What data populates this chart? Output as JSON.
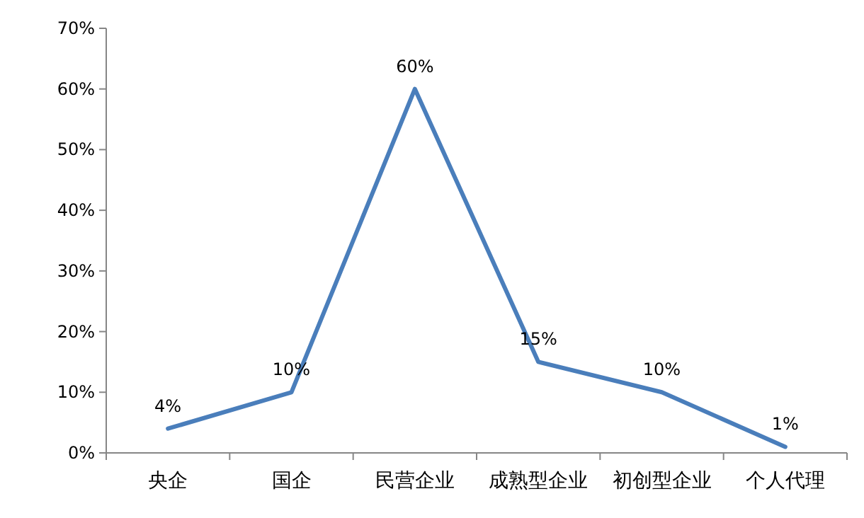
{
  "chart_data": {
    "type": "line",
    "categories": [
      "央企",
      "国企",
      "民营企业",
      "成熟型企业",
      "初创型企业",
      "个人代理"
    ],
    "series": [
      {
        "color": "#4a7ebb",
        "values": [
          4,
          10,
          60,
          15,
          10,
          1
        ],
        "value_labels": [
          "4%",
          "10%",
          "60%",
          "15%",
          "10%",
          "1%"
        ]
      }
    ],
    "ylim": [
      0,
      70
    ],
    "yticks": [
      {
        "value": 0,
        "label": "0%"
      },
      {
        "value": 10,
        "label": "10%"
      },
      {
        "value": 20,
        "label": "20%"
      },
      {
        "value": 30,
        "label": "30%"
      },
      {
        "value": 40,
        "label": "40%"
      },
      {
        "value": 50,
        "label": "50%"
      },
      {
        "value": 60,
        "label": "60%"
      },
      {
        "value": 70,
        "label": "70%"
      }
    ]
  }
}
